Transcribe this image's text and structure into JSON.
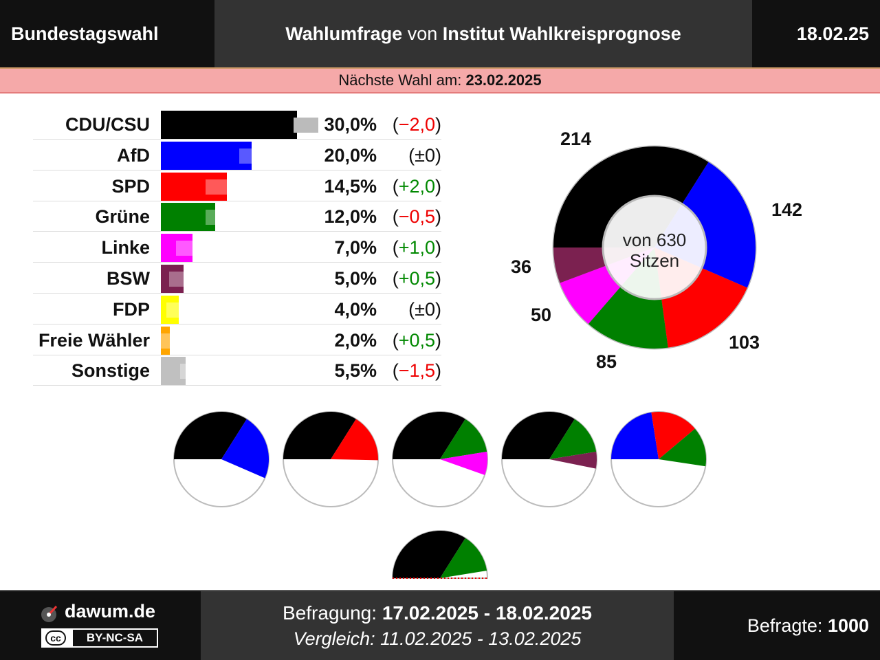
{
  "header": {
    "left_title": "Bundestagswahl",
    "mid_bold1": "Wahlumfrage",
    "mid_plain": " von ",
    "mid_bold2": "Institut Wahlkreisprognose",
    "date": "18.02.25"
  },
  "notice": {
    "label": "Nächste Wahl am: ",
    "date": "23.02.2025"
  },
  "chart_data": [
    {
      "type": "bar",
      "categories": [
        "CDU/CSU",
        "AfD",
        "SPD",
        "Grüne",
        "Linke",
        "BSW",
        "FDP",
        "Freie Wähler",
        "Sonstige"
      ],
      "values": [
        30.0,
        20.0,
        14.5,
        12.0,
        7.0,
        5.0,
        4.0,
        2.0,
        5.5
      ],
      "previous": [
        32.0,
        20.0,
        12.5,
        12.5,
        6.0,
        4.5,
        4.0,
        1.5,
        7.0
      ],
      "value_labels": [
        "30,0%",
        "20,0%",
        "14,5%",
        "12,0%",
        "7,0%",
        "5,0%",
        "4,0%",
        "2,0%",
        "5,5%"
      ],
      "diff_labels": [
        "(−2,0)",
        "(±0)",
        "(+2,0)",
        "(−0,5)",
        "(+1,0)",
        "(+0,5)",
        "(±0)",
        "(+0,5)",
        "(−1,5)"
      ],
      "diff_dir": [
        "down",
        "none",
        "up",
        "down",
        "up",
        "up",
        "none",
        "up",
        "down"
      ],
      "colors": [
        "#000000",
        "#0000ff",
        "#ff0000",
        "#008000",
        "#ff00ff",
        "#7b2150",
        "#ffff00",
        "#ffa500",
        "#c0c0c0"
      ]
    },
    {
      "type": "pie",
      "categories": [
        "CDU/CSU",
        "AfD",
        "SPD",
        "Grüne",
        "Linke",
        "BSW"
      ],
      "values": [
        214,
        142,
        103,
        85,
        50,
        36
      ],
      "value_labels": [
        "214",
        "142",
        "103",
        "85",
        "50",
        "36"
      ],
      "colors": [
        "#000000",
        "#0000ff",
        "#ff0000",
        "#008000",
        "#ff00ff",
        "#7b2150"
      ],
      "center_label_line1": "von 630",
      "center_label_line2": "Sitzen"
    },
    {
      "type": "pie",
      "coalitions": [
        {
          "parties": [
            "CDU/CSU",
            "AfD"
          ],
          "seats": [
            214,
            142
          ]
        },
        {
          "parties": [
            "CDU/CSU",
            "SPD"
          ],
          "seats": [
            214,
            103
          ]
        },
        {
          "parties": [
            "CDU/CSU",
            "Grüne",
            "Linke"
          ],
          "seats": [
            214,
            85,
            50
          ]
        },
        {
          "parties": [
            "CDU/CSU",
            "Grüne",
            "BSW"
          ],
          "seats": [
            214,
            85,
            36
          ]
        },
        {
          "parties": [
            "AfD",
            "SPD",
            "Grüne"
          ],
          "seats": [
            142,
            103,
            85
          ]
        },
        {
          "parties": [
            "CDU/CSU",
            "Grüne"
          ],
          "seats": [
            214,
            85
          ]
        }
      ],
      "total_seats": 630
    }
  ],
  "footer": {
    "brand": "dawum.de",
    "license": "BY-NC-SA",
    "cc": "cc",
    "survey_label": "Befragung: ",
    "survey_range": "17.02.2025 - 18.02.2025",
    "compare_label": "Vergleich: 11.02.2025 - 13.02.2025",
    "respondents_label": "Befragte: ",
    "respondents": "1000"
  }
}
